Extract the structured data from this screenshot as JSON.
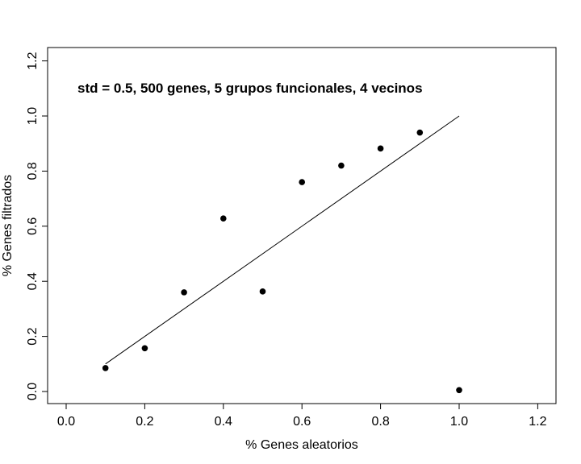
{
  "chart_data": {
    "type": "scatter",
    "title": "",
    "annotation": "std = 0.5, 500 genes, 5 grupos funcionales, 4 vecinos",
    "xlabel": "% Genes aleatorios",
    "ylabel": "% Genes filtrados",
    "xlim": [
      -0.05,
      1.25
    ],
    "ylim": [
      -0.05,
      1.25
    ],
    "xticks": [
      "0.0",
      "0.2",
      "0.4",
      "0.6",
      "0.8",
      "1.0",
      "1.2"
    ],
    "yticks": [
      "0.0",
      "0.2",
      "0.4",
      "0.6",
      "0.8",
      "1.0",
      "1.2"
    ],
    "grid": false,
    "points": [
      {
        "x": 0.1,
        "y": 0.085
      },
      {
        "x": 0.2,
        "y": 0.157
      },
      {
        "x": 0.3,
        "y": 0.36
      },
      {
        "x": 0.4,
        "y": 0.628
      },
      {
        "x": 0.5,
        "y": 0.363
      },
      {
        "x": 0.6,
        "y": 0.76
      },
      {
        "x": 0.7,
        "y": 0.82
      },
      {
        "x": 0.8,
        "y": 0.882
      },
      {
        "x": 0.9,
        "y": 0.94
      },
      {
        "x": 1.0,
        "y": 0.005
      }
    ],
    "reference_line": {
      "x": [
        0.1,
        1.0
      ],
      "y": [
        0.1,
        1.0
      ]
    },
    "point_color": "#000000",
    "line_color": "#000000"
  }
}
